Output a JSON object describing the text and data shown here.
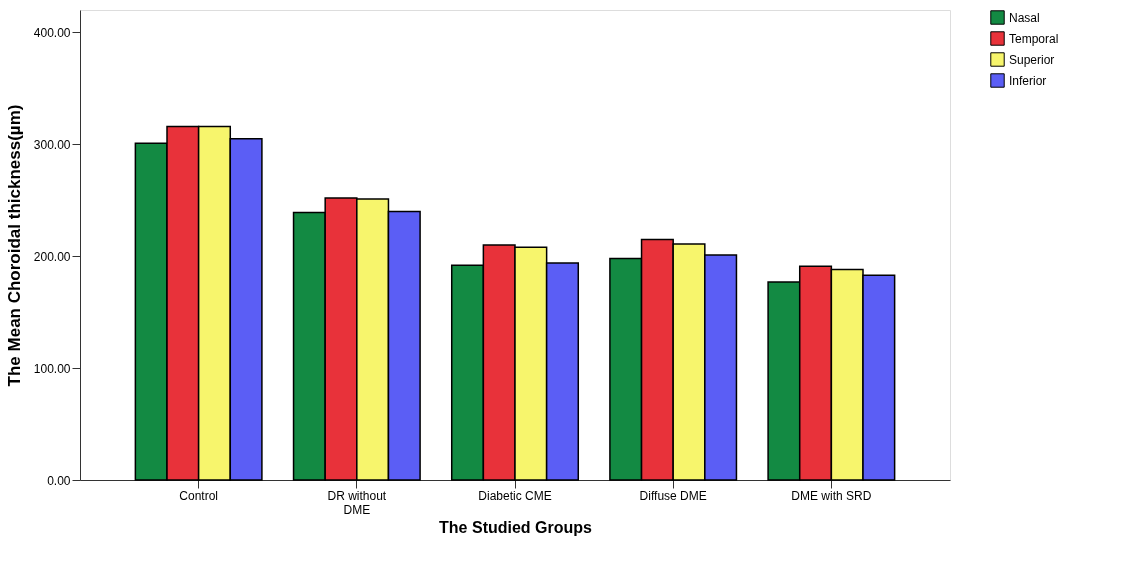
{
  "chart_data": {
    "type": "bar",
    "xlabel": "The Studied Groups",
    "ylabel": "The Mean Choroidal thickness(µm)",
    "categories": [
      "Control",
      "DR without DME",
      "Diabetic CME",
      "Diffuse DME",
      "DME with SRD"
    ],
    "series": [
      {
        "name": "Nasal",
        "color": "#138a43",
        "values": [
          301,
          239,
          192,
          198,
          177
        ]
      },
      {
        "name": "Temporal",
        "color": "#e8323a",
        "values": [
          316,
          252,
          210,
          215,
          191
        ]
      },
      {
        "name": "Superior",
        "color": "#f7f56c",
        "values": [
          316,
          251,
          208,
          211,
          188
        ]
      },
      {
        "name": "Inferior",
        "color": "#5b5ef5",
        "values": [
          305,
          240,
          194,
          201,
          183
        ]
      }
    ],
    "ylim": [
      0,
      420
    ],
    "yticks": [
      {
        "value": 0,
        "label": "0.00"
      },
      {
        "value": 100,
        "label": "100.00"
      },
      {
        "value": 200,
        "label": "200.00"
      },
      {
        "value": 300,
        "label": "300.00"
      },
      {
        "value": 400,
        "label": "400.00"
      }
    ],
    "grid": false,
    "legend": "top right"
  }
}
